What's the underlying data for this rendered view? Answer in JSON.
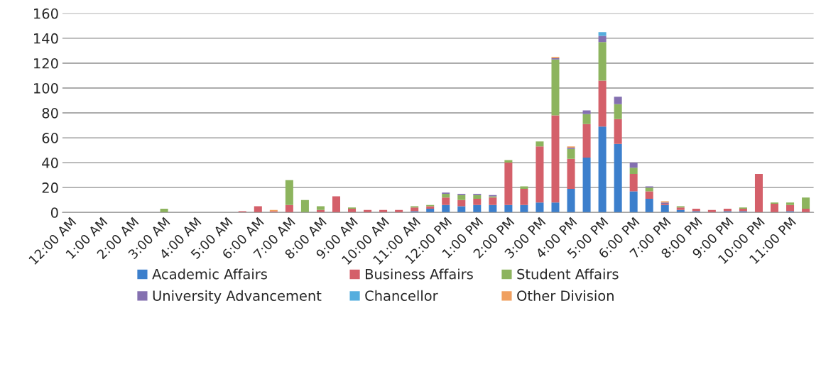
{
  "chart_data": {
    "type": "bar",
    "stacked": true,
    "categories": [
      "12:00 AM",
      null,
      "1:00 AM",
      null,
      "2:00 AM",
      null,
      "3:00 AM",
      null,
      "4:00 AM",
      null,
      "5:00 AM",
      null,
      "6:00 AM",
      null,
      "7:00 AM",
      null,
      "8:00 AM",
      null,
      "9:00 AM",
      null,
      "10:00 AM",
      null,
      "11:00 AM",
      null,
      "12:00 PM",
      null,
      "1:00 PM",
      null,
      "2:00 PM",
      null,
      "3:00 PM",
      null,
      "4:00 PM",
      null,
      "5:00 PM",
      null,
      "6:00 PM",
      null,
      "7:00 PM",
      null,
      "8:00 PM",
      null,
      "9:00 PM",
      null,
      "10:00 PM",
      null,
      "11:00 PM",
      null
    ],
    "series": [
      {
        "name": "Academic Affairs",
        "color": "#3c7fcc",
        "values": [
          0,
          0,
          0,
          0,
          0,
          0,
          0,
          0,
          0,
          0,
          0,
          0,
          0,
          0,
          0,
          0,
          0,
          0,
          0,
          0,
          0,
          0,
          1,
          3,
          6,
          5,
          6,
          6,
          6,
          6,
          8,
          8,
          19,
          44,
          69,
          55,
          17,
          11,
          6,
          2,
          1,
          0,
          1,
          1,
          0,
          0,
          1,
          0
        ]
      },
      {
        "name": "Business Affairs",
        "color": "#d4606a",
        "values": [
          0,
          0,
          0,
          0,
          0,
          0,
          0,
          0,
          0,
          0,
          0,
          1,
          5,
          1,
          6,
          0,
          2,
          13,
          3,
          2,
          2,
          2,
          3,
          2,
          6,
          5,
          5,
          6,
          34,
          13,
          45,
          70,
          24,
          27,
          37,
          20,
          14,
          6,
          1,
          2,
          2,
          2,
          2,
          2,
          31,
          7,
          5,
          3
        ]
      },
      {
        "name": "Student Affairs",
        "color": "#8db45e",
        "values": [
          0,
          0,
          0,
          0,
          0,
          0,
          3,
          0,
          0,
          0,
          0,
          0,
          0,
          0,
          20,
          10,
          3,
          0,
          1,
          0,
          0,
          0,
          1,
          1,
          3,
          4,
          3,
          1,
          2,
          2,
          4,
          45,
          8,
          8,
          31,
          12,
          5,
          3,
          0,
          1,
          0,
          0,
          0,
          1,
          0,
          1,
          2,
          9
        ]
      },
      {
        "name": "University Advancement",
        "color": "#8470b0",
        "values": [
          0,
          0,
          0,
          0,
          0,
          0,
          0,
          0,
          0,
          0,
          0,
          0,
          0,
          0,
          0,
          0,
          0,
          0,
          0,
          0,
          0,
          0,
          0,
          0,
          1,
          1,
          1,
          1,
          0,
          0,
          0,
          1,
          1,
          3,
          5,
          6,
          4,
          1,
          1,
          0,
          0,
          0,
          0,
          0,
          0,
          0,
          0,
          0
        ]
      },
      {
        "name": "Chancellor",
        "color": "#55aede",
        "values": [
          0,
          0,
          0,
          0,
          0,
          0,
          0,
          0,
          0,
          0,
          0,
          0,
          0,
          0,
          0,
          0,
          0,
          0,
          0,
          0,
          0,
          0,
          0,
          0,
          0,
          0,
          0,
          0,
          0,
          0,
          0,
          0,
          0,
          0,
          3,
          0,
          0,
          0,
          0,
          0,
          0,
          0,
          0,
          0,
          0,
          0,
          0,
          0
        ]
      },
      {
        "name": "Other Division",
        "color": "#f0a060",
        "values": [
          0,
          0,
          0,
          0,
          0,
          0,
          0,
          0,
          0,
          0,
          0,
          0,
          0,
          1,
          0,
          0,
          0,
          0,
          0,
          0,
          0,
          0,
          0,
          0,
          0,
          0,
          0,
          0,
          0,
          0,
          0,
          1,
          1,
          0,
          0,
          0,
          0,
          0,
          1,
          0,
          0,
          0,
          0,
          0,
          0,
          0,
          0,
          0
        ]
      }
    ],
    "ylim": [
      0,
      160
    ],
    "yticks": [
      0,
      20,
      40,
      60,
      80,
      100,
      120,
      140,
      160
    ],
    "grid": "y",
    "legend": "bottom"
  }
}
